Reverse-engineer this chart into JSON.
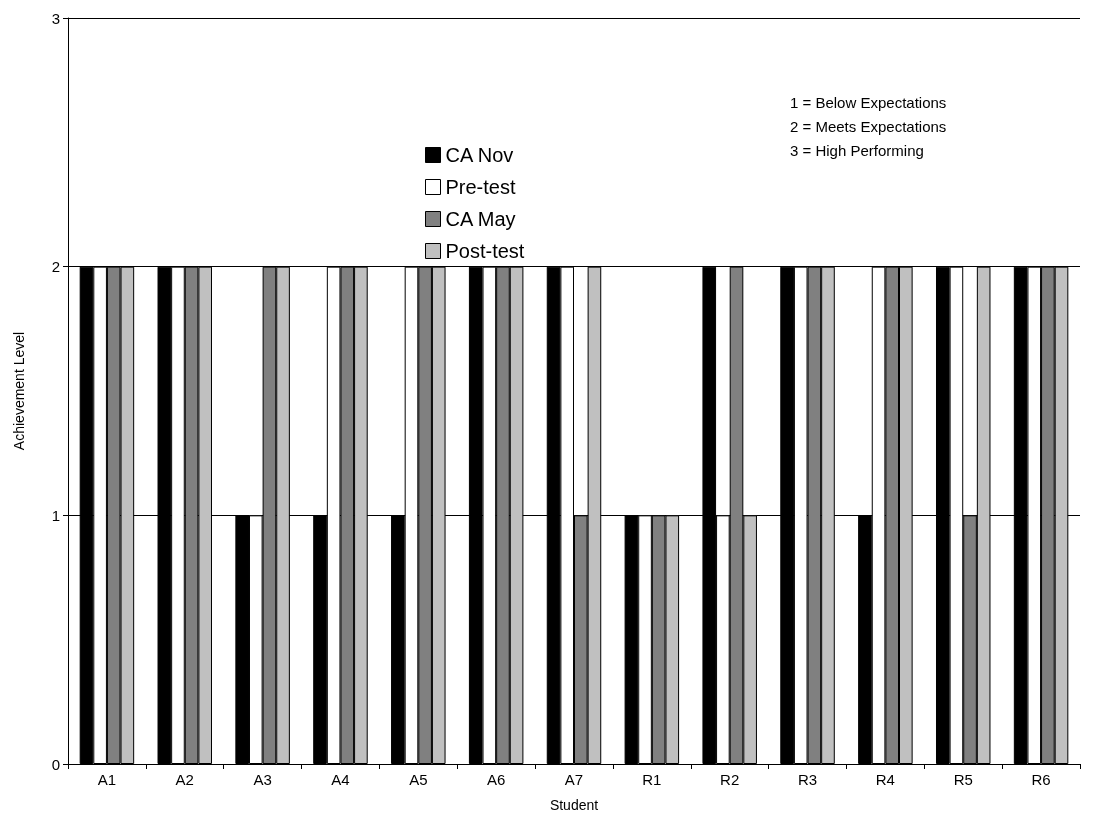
{
  "chart_data": {
    "type": "bar",
    "xlabel": "Student",
    "ylabel": "Achievement Level",
    "categories": [
      "A1",
      "A2",
      "A3",
      "A4",
      "A5",
      "A6",
      "A7",
      "R1",
      "R2",
      "R3",
      "R4",
      "R5",
      "R6"
    ],
    "series": [
      {
        "name": "CA Nov",
        "color": "#000000",
        "values": [
          2,
          2,
          1,
          1,
          1,
          2,
          2,
          1,
          2,
          2,
          1,
          2,
          2
        ]
      },
      {
        "name": "Pre-test",
        "color": "#ffffff",
        "values": [
          2,
          2,
          1,
          2,
          2,
          2,
          2,
          1,
          1,
          2,
          2,
          2,
          2
        ]
      },
      {
        "name": "CA May",
        "color": "#808080",
        "values": [
          2,
          2,
          2,
          2,
          2,
          2,
          1,
          1,
          2,
          2,
          2,
          1,
          2
        ]
      },
      {
        "name": "Post-test",
        "color": "#c0c0c0",
        "values": [
          2,
          2,
          2,
          2,
          2,
          2,
          2,
          1,
          1,
          2,
          2,
          2,
          2
        ]
      }
    ],
    "ylim": [
      0,
      3
    ],
    "yticks": [
      0,
      1,
      2,
      3
    ],
    "grid": "y",
    "legend": "top",
    "annotations": [
      "1 = Below Expectations",
      "2 = Meets Expectations",
      "3 = High Performing"
    ]
  }
}
